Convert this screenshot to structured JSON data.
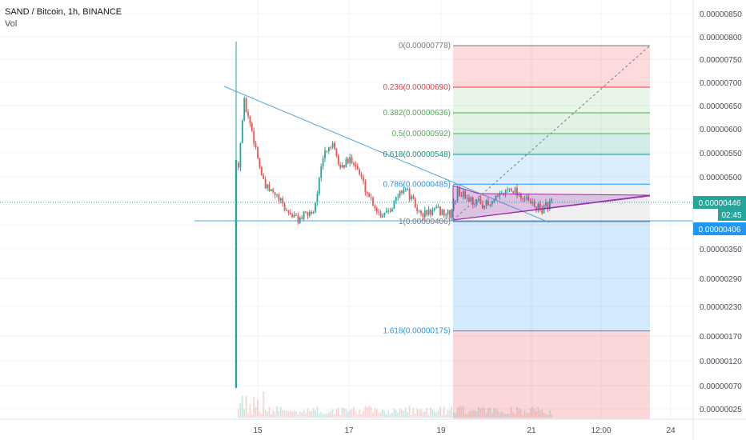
{
  "header": {
    "symbol_line": "SAND / Bitcoin, 1h, BINANCE",
    "indicator": "Vol"
  },
  "chart_data": {
    "type": "candlestick",
    "title": "SAND / Bitcoin, 1h, BINANCE",
    "ylim": [
      2e-07,
      9e-07
    ],
    "y_ticks": [
      "0.00000850",
      "0.00000800",
      "0.00000750",
      "0.00000700",
      "0.00000650",
      "0.00000600",
      "0.00000550",
      "0.00000500",
      "0.00000450",
      "0.00000400",
      "0.00000350",
      "0.00000290",
      "0.00000230",
      "0.00000170",
      "0.00000120",
      "0.00000070",
      "0.00000025"
    ],
    "x_ticks": [
      "15",
      "17",
      "19",
      "21",
      "12:00",
      "24"
    ],
    "last_price": {
      "value": "0.00000446",
      "countdown": "02:45"
    },
    "support_level": {
      "value": "0.00000406"
    },
    "fib_levels": [
      {
        "label": "0(0.00000778)",
        "ratio": 0,
        "price": 7.78e-06,
        "color": "#787b86"
      },
      {
        "label": "0.236(0.00000690)",
        "ratio": 0.236,
        "price": 6.9e-06,
        "color": "#f23645"
      },
      {
        "label": "0.382(0.00000636)",
        "ratio": 0.382,
        "price": 6.36e-06,
        "color": "#4caf50"
      },
      {
        "label": "0.5(0.00000592)",
        "ratio": 0.5,
        "price": 5.92e-06,
        "color": "#4caf50"
      },
      {
        "label": "0.618(0.00000548)",
        "ratio": 0.618,
        "price": 5.48e-06,
        "color": "#089981"
      },
      {
        "label": "0.786(0.00000485)",
        "ratio": 0.786,
        "price": 4.85e-06,
        "color": "#2196f3"
      },
      {
        "label": "1(0.00000406)",
        "ratio": 1,
        "price": 4.06e-06,
        "color": "#787b86"
      },
      {
        "label": "1.618(0.00000175)",
        "ratio": 1.618,
        "price": 1.75e-06,
        "color": "#2196f3"
      }
    ],
    "colors": {
      "up": "#26a69a",
      "down": "#ef5350",
      "trendline": "#4fa3e0",
      "grid": "#f0f3fa"
    }
  }
}
